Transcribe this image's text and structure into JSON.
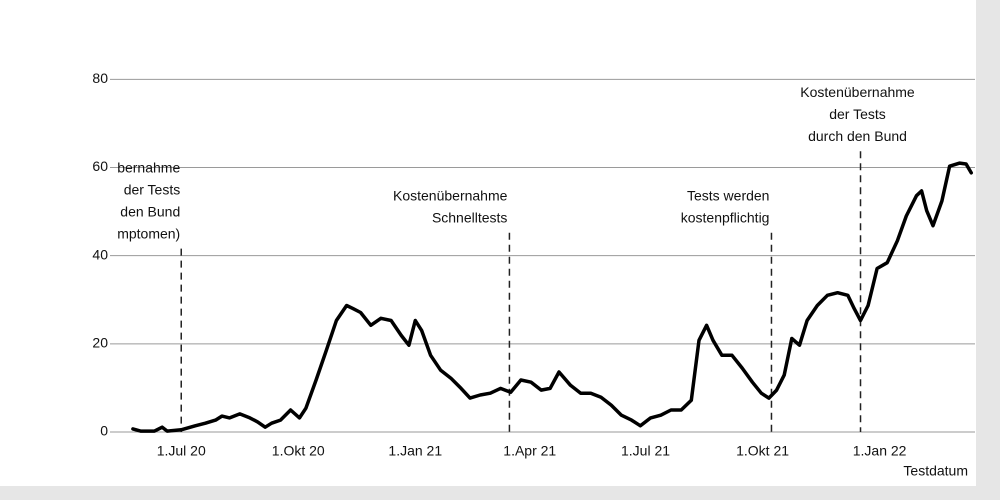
{
  "chart_data": {
    "type": "line",
    "x_label": "Testdatum",
    "x": [
      "2020-05-24",
      "2020-05-30",
      "2020-06-10",
      "2020-06-16",
      "2020-06-20",
      "2020-07-01",
      "2020-07-12",
      "2020-07-20",
      "2020-07-28",
      "2020-08-02",
      "2020-08-08",
      "2020-08-16",
      "2020-08-24",
      "2020-08-30",
      "2020-09-05",
      "2020-09-10",
      "2020-09-17",
      "2020-09-25",
      "2020-10-02",
      "2020-10-07",
      "2020-10-15",
      "2020-10-23",
      "2020-10-31",
      "2020-11-08",
      "2020-11-13",
      "2020-11-19",
      "2020-11-27",
      "2020-12-05",
      "2020-12-13",
      "2020-12-21",
      "2020-12-27",
      "2021-01-01",
      "2021-01-06",
      "2021-01-13",
      "2021-01-21",
      "2021-01-29",
      "2021-02-06",
      "2021-02-13",
      "2021-02-21",
      "2021-03-01",
      "2021-03-09",
      "2021-03-17",
      "2021-03-25",
      "2021-04-02",
      "2021-04-10",
      "2021-04-17",
      "2021-04-24",
      "2021-05-03",
      "2021-05-11",
      "2021-05-19",
      "2021-05-27",
      "2021-06-04",
      "2021-06-12",
      "2021-06-20",
      "2021-06-27",
      "2021-07-05",
      "2021-07-13",
      "2021-07-21",
      "2021-07-29",
      "2021-08-06",
      "2021-08-12",
      "2021-08-18",
      "2021-08-23",
      "2021-08-30",
      "2021-09-07",
      "2021-09-15",
      "2021-09-23",
      "2021-09-30",
      "2021-10-06",
      "2021-10-12",
      "2021-10-18",
      "2021-10-24",
      "2021-10-30",
      "2021-11-05",
      "2021-11-13",
      "2021-11-21",
      "2021-11-29",
      "2021-12-07",
      "2021-12-12",
      "2021-12-17",
      "2021-12-23",
      "2021-12-30",
      "2022-01-07",
      "2022-01-15",
      "2022-01-22",
      "2022-01-30",
      "2022-02-03",
      "2022-02-07",
      "2022-02-12",
      "2022-02-19",
      "2022-02-25",
      "2022-03-05",
      "2022-03-10",
      "2022-03-14"
    ],
    "series": [
      {
        "name": null,
        "color": "#000000",
        "values": [
          0.7,
          0.2,
          0.2,
          1.1,
          0.2,
          0.5,
          1.4,
          2,
          2.7,
          3.6,
          3.2,
          4.1,
          3.2,
          2.3,
          1.1,
          2,
          2.7,
          5,
          3.2,
          5.4,
          11.8,
          18.5,
          25.3,
          28.7,
          28,
          27.1,
          24.2,
          25.8,
          25.3,
          21.9,
          19.7,
          25.3,
          23,
          17.4,
          14,
          12.2,
          9.9,
          7.7,
          8.4,
          8.8,
          9.9,
          9,
          11.8,
          11.3,
          9.5,
          9.9,
          13.6,
          10.6,
          8.8,
          8.8,
          7.9,
          6.1,
          3.8,
          2.7,
          1.4,
          3.2,
          3.8,
          5,
          5,
          7.2,
          20.8,
          24.2,
          20.8,
          17.4,
          17.4,
          14.5,
          11.3,
          8.8,
          7.7,
          9.5,
          12.9,
          21.2,
          19.7,
          25.3,
          28.7,
          31,
          31.6,
          31,
          28,
          25.3,
          28.7,
          37.1,
          38.4,
          43.4,
          49,
          53.6,
          54.7,
          50.2,
          46.8,
          52.4,
          60.3,
          61,
          60.8,
          58.8
        ]
      }
    ],
    "xlim": [
      "2020-05-06",
      "2022-03-17"
    ],
    "xticks": [
      {
        "value": "2020-07-01",
        "label": "1.Jul 20"
      },
      {
        "value": "2020-10-01",
        "label": "1.Okt 20"
      },
      {
        "value": "2021-01-01",
        "label": "1.Jan 21"
      },
      {
        "value": "2021-04-01",
        "label": "1.Apr 21"
      },
      {
        "value": "2021-07-01",
        "label": "1.Jul 21"
      },
      {
        "value": "2021-10-01",
        "label": "1.Okt 21"
      },
      {
        "value": "2022-01-01",
        "label": "1.Jan 22"
      }
    ],
    "ylim": [
      0,
      98
    ],
    "yticks": [
      0,
      20,
      40,
      60,
      80
    ],
    "grid": true,
    "annotations": [
      {
        "x": "2020-07-01",
        "y": 41.6,
        "lines": [
          "bernahme",
          "der Tests",
          "den Bund",
          "mptomen)"
        ]
      },
      {
        "x": "2021-03-16",
        "y": 45.2,
        "lines": [
          "Kostenübernahme",
          "Schnelltests"
        ]
      },
      {
        "x": "2021-10-08",
        "y": 45.2,
        "lines": [
          "Tests werden",
          "kostenpflichtig"
        ]
      },
      {
        "x": "2021-12-17",
        "y": 63.7,
        "lines": [
          "Kostenübernahme",
          "der Tests",
          "durch den Bund"
        ]
      }
    ]
  }
}
